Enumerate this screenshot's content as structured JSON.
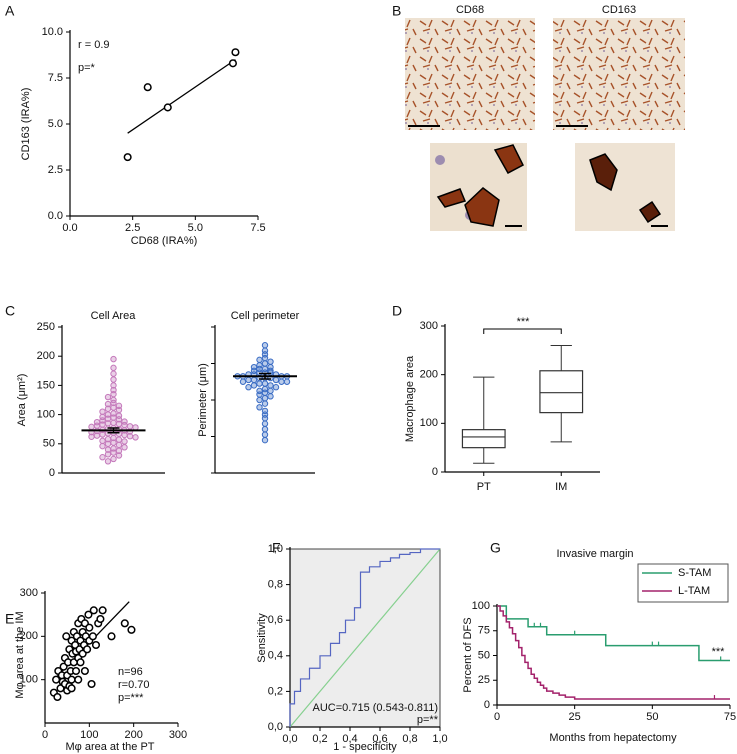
{
  "panel_b": {
    "label": "B",
    "stains": [
      "CD68",
      "CD163"
    ]
  },
  "chart_data": [
    {
      "panel": "A",
      "type": "scatter",
      "color": "#000000",
      "x": [
        2.3,
        3.1,
        3.9,
        6.5,
        6.6
      ],
      "values": [
        3.2,
        7.0,
        5.9,
        8.3,
        8.9
      ],
      "fit_x": [
        2.3,
        6.6
      ],
      "fit_y": [
        4.5,
        8.5
      ],
      "xlim": [
        0,
        7.5
      ],
      "ylim": [
        0,
        10
      ],
      "xticks": [
        {
          "value": 0,
          "label": "0.0"
        },
        {
          "value": 2.5,
          "label": "2.5"
        },
        {
          "value": 5,
          "label": "5.0"
        },
        {
          "value": 7.5,
          "label": "7.5"
        }
      ],
      "yticks": [
        {
          "value": 0,
          "label": "0.0"
        },
        {
          "value": 2.5,
          "label": "2.5"
        },
        {
          "value": 5,
          "label": "5.0"
        },
        {
          "value": 7.5,
          "label": "7.5"
        },
        {
          "value": 10,
          "label": "10.0"
        }
      ],
      "xlabel": "CD68 (IRA%)",
      "ylabel": "CD163 (IRA%)",
      "annotations": [
        "r = 0.9",
        "p=*"
      ]
    },
    {
      "panel": "C",
      "type": "dotplot",
      "title": "Cell Area",
      "color": "#c479bb",
      "values": [
        195,
        180,
        170,
        160,
        150,
        142,
        135,
        130,
        125,
        120,
        118,
        115,
        112,
        110,
        108,
        105,
        102,
        100,
        98,
        96,
        95,
        93,
        92,
        90,
        88,
        87,
        86,
        85,
        84,
        83,
        82,
        81,
        80,
        79,
        78,
        77,
        76,
        75,
        74,
        73,
        72,
        71,
        70,
        69,
        68,
        67,
        66,
        65,
        64,
        63,
        62,
        61,
        60,
        58,
        57,
        55,
        54,
        52,
        50,
        48,
        46,
        44,
        42,
        40,
        38,
        35,
        32,
        30,
        27,
        24,
        20
      ],
      "mean": 73,
      "sem": 4,
      "ylim": [
        0,
        250
      ],
      "yticks": [
        0,
        50,
        100,
        150,
        200,
        250
      ],
      "ylabel": "Area (μm²)"
    },
    {
      "type": "dotplot",
      "title": "Cell perimeter",
      "color": "#3a6cc4",
      "values": [
        70,
        67,
        65,
        63,
        62,
        61,
        60,
        59,
        58,
        58,
        57,
        57,
        56,
        56,
        55,
        55,
        55,
        54,
        54,
        54,
        53,
        53,
        53,
        53,
        52,
        52,
        52,
        51,
        51,
        51,
        50,
        50,
        50,
        49,
        49,
        48,
        48,
        47,
        47,
        46,
        45,
        45,
        44,
        43,
        42,
        41,
        40,
        38,
        36,
        34,
        32,
        30,
        27,
        24,
        21,
        18
      ],
      "mean": 53,
      "sem": 1.5,
      "ylim": [
        0,
        80
      ],
      "yticks": [
        0,
        20,
        40,
        60,
        80
      ],
      "tick_labels": false,
      "ylabel": "Perimeter (μm)"
    },
    {
      "panel": "D",
      "type": "box",
      "categories": [
        "PT",
        "IM"
      ],
      "min": [
        18,
        62
      ],
      "q1": [
        50,
        122
      ],
      "median": [
        72,
        163
      ],
      "q3": [
        87,
        208
      ],
      "max": [
        195,
        260
      ],
      "ylim": [
        0,
        300
      ],
      "yticks": [
        0,
        100,
        200,
        300
      ],
      "ylabel": "Macrophage area",
      "annotations": [
        "***"
      ]
    },
    {
      "panel": "E",
      "type": "scatter",
      "color": "#000000",
      "x": [
        25,
        30,
        35,
        38,
        40,
        42,
        45,
        45,
        48,
        50,
        50,
        52,
        55,
        55,
        58,
        60,
        60,
        62,
        65,
        65,
        68,
        70,
        70,
        72,
        75,
        75,
        78,
        80,
        80,
        82,
        85,
        85,
        88,
        90,
        90,
        92,
        95,
        98,
        100,
        100,
        105,
        108,
        110,
        115,
        120,
        125,
        130,
        150,
        180,
        195,
        20,
        28,
        60,
        75
      ],
      "values": [
        100,
        120,
        80,
        110,
        95,
        130,
        90,
        150,
        200,
        75,
        110,
        140,
        85,
        170,
        120,
        100,
        190,
        160,
        140,
        210,
        180,
        120,
        165,
        200,
        150,
        230,
        170,
        140,
        190,
        240,
        160,
        210,
        180,
        120,
        230,
        200,
        170,
        250,
        190,
        220,
        90,
        200,
        260,
        180,
        230,
        240,
        260,
        200,
        230,
        215,
        70,
        60,
        80,
        100
      ],
      "fit_x": [
        20,
        190
      ],
      "fit_y": [
        100,
        280
      ],
      "xlim": [
        0,
        300
      ],
      "ylim": [
        0,
        300
      ],
      "xticks": [
        0,
        100,
        200,
        300
      ],
      "yticks": [
        100,
        200,
        300
      ],
      "xlabel": "Mφ area at the PT",
      "ylabel": "Mφ area at the IM",
      "annotations": [
        "n=96",
        "r=0.70",
        "p=***"
      ]
    },
    {
      "panel": "F",
      "type": "roc",
      "color": "#5566c2",
      "reference_color": "#86d08f",
      "background": "#ededed",
      "x": [
        0,
        0,
        0.03,
        0.03,
        0.07,
        0.07,
        0.13,
        0.13,
        0.2,
        0.2,
        0.27,
        0.27,
        0.33,
        0.33,
        0.37,
        0.37,
        0.43,
        0.43,
        0.47,
        0.47,
        0.53,
        0.53,
        0.6,
        0.6,
        0.67,
        0.67,
        0.73,
        0.73,
        0.8,
        0.8,
        0.87,
        0.87,
        1
      ],
      "values": [
        0,
        0.13,
        0.13,
        0.2,
        0.2,
        0.27,
        0.27,
        0.33,
        0.33,
        0.4,
        0.4,
        0.47,
        0.47,
        0.53,
        0.53,
        0.6,
        0.6,
        0.67,
        0.67,
        0.87,
        0.87,
        0.9,
        0.9,
        0.93,
        0.93,
        0.95,
        0.95,
        0.97,
        0.97,
        0.98,
        0.98,
        1,
        1
      ],
      "xlim": [
        0,
        1
      ],
      "ylim": [
        0,
        1
      ],
      "xticks": [
        {
          "value": 0,
          "label": "0,0"
        },
        {
          "value": 0.2,
          "label": "0,2"
        },
        {
          "value": 0.4,
          "label": "0,4"
        },
        {
          "value": 0.6,
          "label": "0,6"
        },
        {
          "value": 0.8,
          "label": "0,8"
        },
        {
          "value": 1,
          "label": "1,0"
        }
      ],
      "yticks": [
        {
          "value": 0,
          "label": "0,0"
        },
        {
          "value": 0.2,
          "label": "0,2"
        },
        {
          "value": 0.4,
          "label": "0,4"
        },
        {
          "value": 0.6,
          "label": "0,6"
        },
        {
          "value": 0.8,
          "label": "0,8"
        },
        {
          "value": 1,
          "label": "1,0"
        }
      ],
      "xlabel": "1 - specificity",
      "ylabel": "Sensitivity",
      "annotations": [
        "AUC=0.715 (0.543-0.811)",
        "p=**"
      ]
    },
    {
      "panel": "G",
      "type": "survival",
      "title": "Invasive margin",
      "legend": "upper right",
      "series": [
        {
          "name": "S-TAM",
          "color": "#2a9d6f",
          "x": [
            0,
            3,
            3,
            10,
            10,
            16,
            16,
            35,
            35,
            65,
            65,
            75
          ],
          "values": [
            100,
            100,
            87,
            87,
            79,
            79,
            71,
            71,
            60,
            60,
            45,
            45
          ],
          "censored": [
            12,
            14,
            25,
            50,
            52,
            72
          ]
        },
        {
          "name": "L-TAM",
          "color": "#a3226b",
          "x": [
            0,
            1,
            1,
            2,
            2,
            3,
            3,
            4,
            4,
            5,
            5,
            6,
            6,
            7,
            7,
            8,
            8,
            9,
            9,
            10,
            10,
            11,
            11,
            12,
            12,
            13,
            13,
            14,
            14,
            15,
            15,
            16,
            16,
            18,
            18,
            20,
            20,
            22,
            22,
            25,
            25,
            75
          ],
          "values": [
            100,
            100,
            95,
            95,
            90,
            90,
            84,
            84,
            78,
            78,
            72,
            72,
            65,
            65,
            58,
            58,
            50,
            50,
            43,
            43,
            37,
            37,
            31,
            31,
            27,
            27,
            23,
            23,
            20,
            20,
            17,
            17,
            14,
            14,
            12,
            12,
            10,
            10,
            8,
            8,
            6,
            6
          ],
          "censored": [
            70
          ]
        }
      ],
      "xlim": [
        0,
        75
      ],
      "ylim": [
        0,
        100
      ],
      "xticks": [
        0,
        25,
        50,
        75
      ],
      "yticks": [
        0,
        25,
        50,
        75,
        100
      ],
      "xlabel": "Months from hepatectomy",
      "ylabel": "Percent of DFS",
      "annotations": [
        "***"
      ]
    }
  ]
}
